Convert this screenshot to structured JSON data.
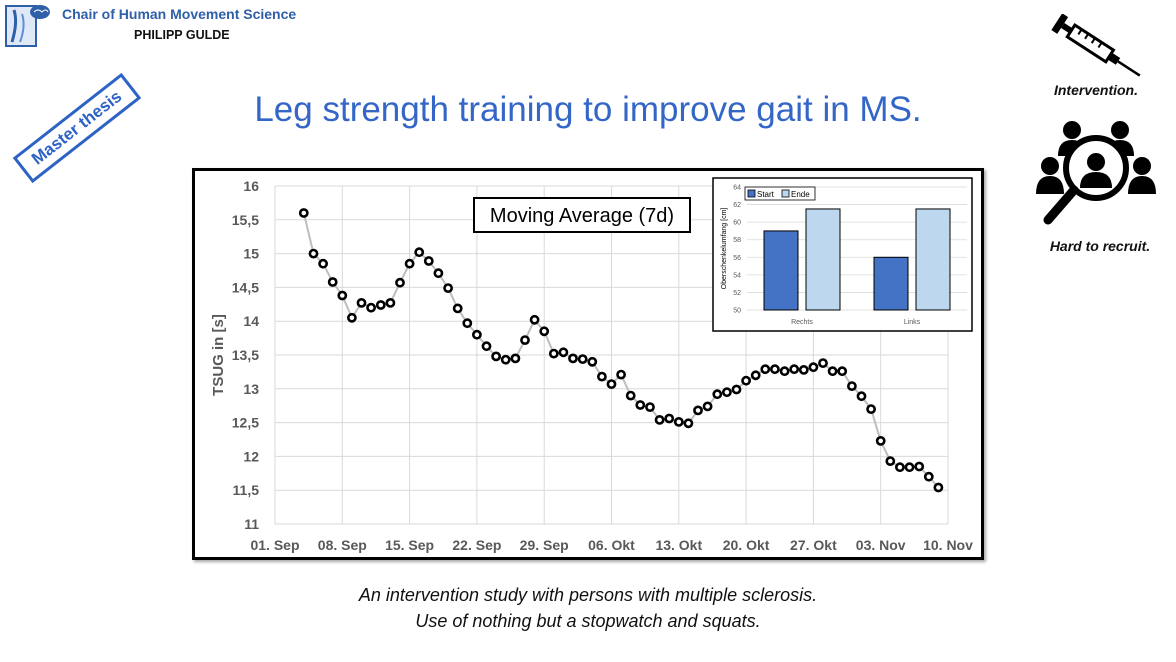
{
  "header": {
    "institution": "Chair of Human Movement Science",
    "author": "PHILIPP GULDE",
    "logo_icon": "brain-logo-icon"
  },
  "badge": {
    "label": "Master thesis",
    "color": "#2e63c6"
  },
  "title": "Leg strength training to improve gait in MS.",
  "captions": {
    "line1": "An intervention study with persons with multiple sclerosis.",
    "line2": "Use of nothing but a stopwatch and squats."
  },
  "side_panel": {
    "intervention_label": "Intervention.",
    "intervention_icon": "syringe-icon",
    "recruit_label": "Hard to recruit.",
    "recruit_icon": "people-magnifier-icon"
  },
  "colors": {
    "accent": "#3366c6",
    "line": "#bdbdbd",
    "marker": "#000000",
    "bar_start": "#4472c4",
    "bar_end": "#bdd7ee"
  },
  "chart_data": [
    {
      "type": "line",
      "title": "Moving Average (7d)",
      "ylabel": "TSUG in [s]",
      "xlabel": "",
      "ylim": [
        11,
        16
      ],
      "yticks": [
        "11",
        "11,5",
        "12",
        "12,5",
        "13",
        "13,5",
        "14",
        "14,5",
        "15",
        "15,5",
        "16"
      ],
      "xticks": [
        "01. Sep",
        "08. Sep",
        "15. Sep",
        "22. Sep",
        "29. Sep",
        "06. Okt",
        "13. Okt",
        "20. Okt",
        "27. Okt",
        "03. Nov",
        "10. Nov"
      ],
      "grid": true,
      "series": [
        {
          "values": [
            15.6,
            15.0,
            14.85,
            14.58,
            14.38,
            14.05,
            14.27,
            14.2,
            14.24,
            14.27,
            14.57,
            14.85,
            15.02,
            14.89,
            14.71,
            14.49,
            14.19,
            13.97,
            13.8,
            13.63,
            13.48,
            13.43,
            13.45,
            13.72,
            14.02,
            13.85,
            13.52,
            13.54,
            13.45,
            13.44,
            13.4,
            13.18,
            13.07,
            13.21,
            12.9,
            12.76,
            12.73,
            12.54,
            12.56,
            12.51,
            12.49,
            12.68,
            12.74,
            12.92,
            12.95,
            12.99,
            13.12,
            13.2,
            13.29,
            13.29,
            13.26,
            13.29,
            13.28,
            13.32,
            13.38,
            13.26,
            13.26,
            13.04,
            12.89,
            12.7,
            12.23,
            11.93,
            11.84,
            11.84,
            11.85,
            11.7,
            11.54
          ]
        }
      ]
    },
    {
      "type": "bar",
      "ylabel": "Oberschenkelumfang [cm]",
      "ylim": [
        50,
        64
      ],
      "yticks": [
        "50",
        "52",
        "54",
        "56",
        "58",
        "60",
        "62",
        "64"
      ],
      "categories": [
        "Rechts",
        "Links"
      ],
      "legend_position": "top-left",
      "series": [
        {
          "name": "Start",
          "values": [
            59,
            56
          ]
        },
        {
          "name": "Ende",
          "values": [
            61.5,
            61.5
          ]
        }
      ]
    }
  ]
}
